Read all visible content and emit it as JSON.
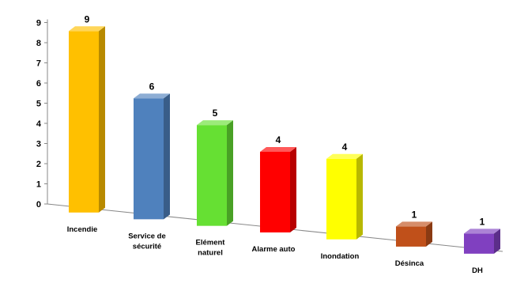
{
  "chart_data": {
    "type": "bar",
    "title": "",
    "xlabel": "",
    "ylabel": "",
    "ylim": [
      0,
      9
    ],
    "yticks": [
      0,
      1,
      2,
      3,
      4,
      5,
      6,
      7,
      8,
      9
    ],
    "grid": false,
    "style": "3d-columns",
    "categories": [
      [
        "Incendie"
      ],
      [
        "Service de",
        "sécurité"
      ],
      [
        "Elément",
        "naturel"
      ],
      [
        "Alarme auto"
      ],
      [
        "Inondation"
      ],
      [
        "Désinca"
      ],
      [
        "DH"
      ]
    ],
    "values": [
      9,
      6,
      5,
      4,
      4,
      1,
      1
    ],
    "colors": [
      "#ffc000",
      "#4f81bd",
      "#66e033",
      "#ff0000",
      "#ffff00",
      "#c0501a",
      "#8040c0"
    ]
  }
}
